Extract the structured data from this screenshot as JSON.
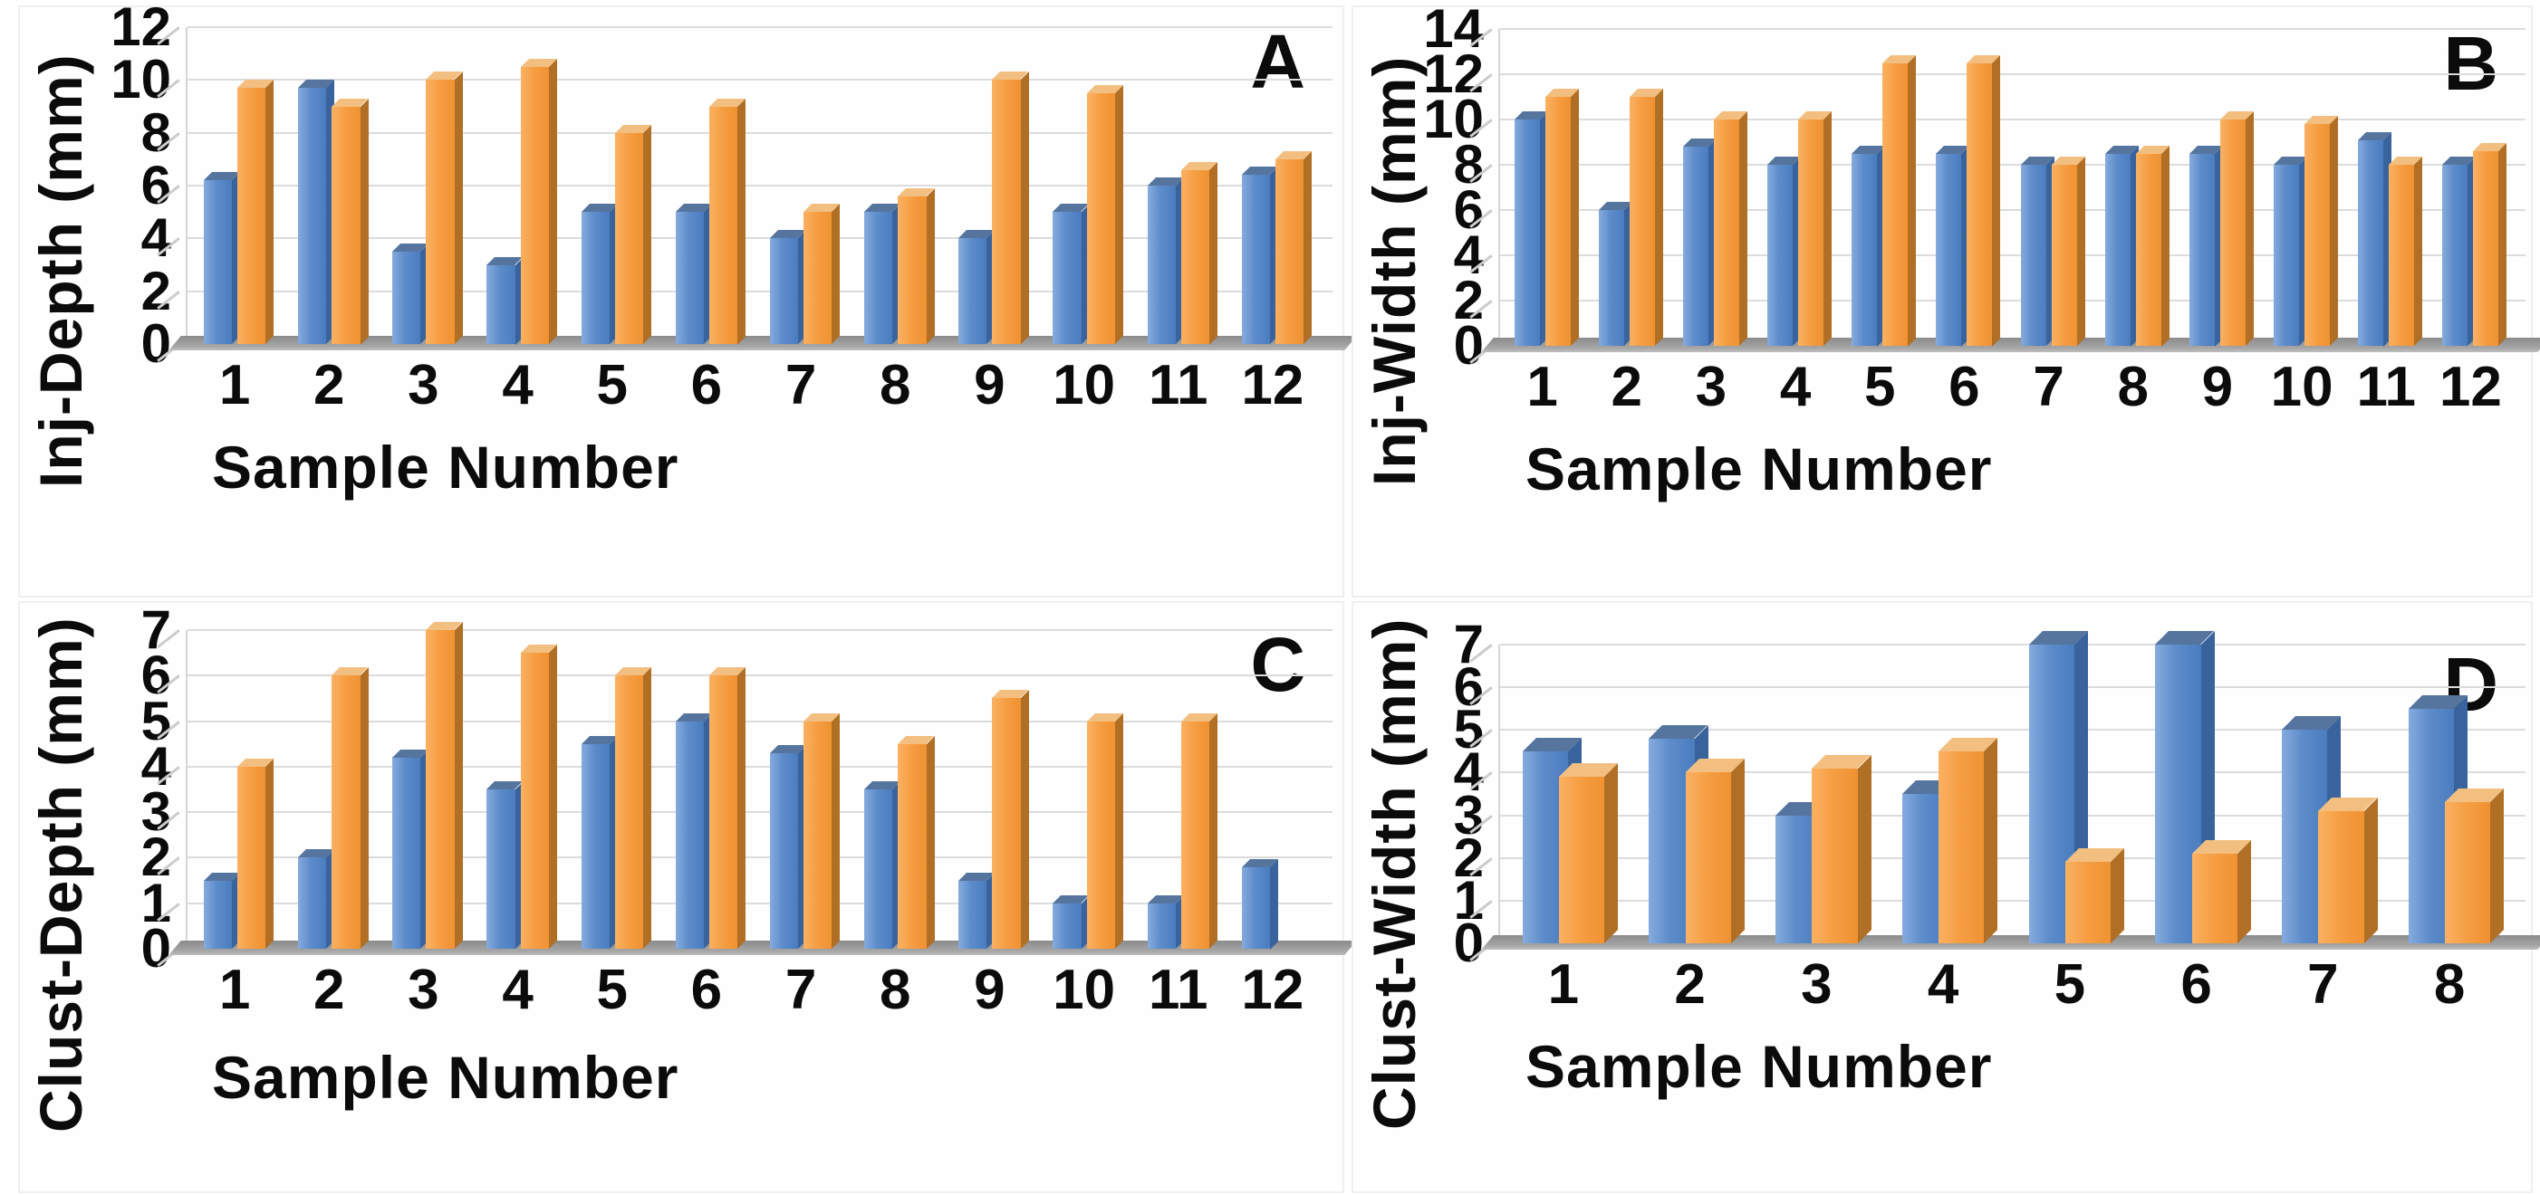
{
  "figure": {
    "background": "#ffffff",
    "legend": "none",
    "series_palette": {
      "blue": "#4C7EC0",
      "orange": "#F09A3E"
    }
  },
  "chart_data": [
    {
      "id": "A",
      "panel_label": "A",
      "type": "bar",
      "ylabel": "Inj-Depth (mm)",
      "xlabel": "Sample Number",
      "categories": [
        "1",
        "2",
        "3",
        "4",
        "5",
        "6",
        "7",
        "8",
        "9",
        "10",
        "11",
        "12"
      ],
      "yticks": [
        0,
        2,
        4,
        6,
        8,
        10,
        12
      ],
      "ylim": [
        0,
        12
      ],
      "grid": true,
      "legend": "none",
      "series": [
        {
          "name": "blue",
          "color": "#4C7EC0",
          "values": [
            6.2,
            9.7,
            3.5,
            3.0,
            5.0,
            5.0,
            4.0,
            5.0,
            4.0,
            5.0,
            6.0,
            6.4
          ]
        },
        {
          "name": "orange",
          "color": "#F09A3E",
          "values": [
            9.7,
            9.0,
            10.0,
            10.5,
            8.0,
            9.0,
            5.0,
            5.6,
            10.0,
            9.5,
            6.6,
            7.0
          ]
        }
      ]
    },
    {
      "id": "B",
      "panel_label": "B",
      "type": "bar",
      "ylabel": "Inj-Width (mm)",
      "xlabel": "Sample Number",
      "categories": [
        "1",
        "2",
        "3",
        "4",
        "5",
        "6",
        "7",
        "8",
        "9",
        "10",
        "11",
        "12"
      ],
      "yticks": [
        0,
        2,
        4,
        6,
        8,
        10,
        12,
        14
      ],
      "ylim": [
        0,
        14
      ],
      "grid": true,
      "legend": "none",
      "series": [
        {
          "name": "blue",
          "color": "#4C7EC0",
          "values": [
            10.0,
            6.0,
            8.8,
            8.0,
            8.5,
            8.5,
            8.0,
            8.5,
            8.5,
            8.0,
            9.1,
            8.0
          ]
        },
        {
          "name": "orange",
          "color": "#F09A3E",
          "values": [
            11.0,
            11.0,
            10.0,
            10.0,
            12.5,
            12.5,
            8.0,
            8.5,
            10.0,
            9.8,
            8.0,
            8.6
          ]
        }
      ]
    },
    {
      "id": "C",
      "panel_label": "C",
      "type": "bar",
      "ylabel": "Clust-Depth (mm)",
      "xlabel": "Sample Number",
      "categories": [
        "1",
        "2",
        "3",
        "4",
        "5",
        "6",
        "7",
        "8",
        "9",
        "10",
        "11",
        "12"
      ],
      "yticks": [
        0,
        1,
        2,
        3,
        4,
        5,
        6,
        7
      ],
      "ylim": [
        0,
        7
      ],
      "grid": true,
      "legend": "none",
      "series": [
        {
          "name": "blue",
          "color": "#4C7EC0",
          "values": [
            1.5,
            2.0,
            4.2,
            3.5,
            4.5,
            5.0,
            4.3,
            3.5,
            1.5,
            1.0,
            1.0,
            1.8
          ]
        },
        {
          "name": "orange",
          "color": "#F09A3E",
          "values": [
            4.0,
            6.0,
            7.0,
            6.5,
            6.0,
            6.0,
            5.0,
            4.5,
            5.5,
            5.0,
            5.0,
            null
          ]
        }
      ]
    },
    {
      "id": "D",
      "panel_label": "D",
      "type": "bar",
      "ylabel": "Clust-Width (mm)",
      "xlabel": "Sample Number",
      "categories": [
        "1",
        "2",
        "3",
        "4",
        "5",
        "6",
        "7",
        "8"
      ],
      "yticks": [
        0,
        1,
        2,
        3,
        4,
        5,
        6,
        7
      ],
      "ylim": [
        0,
        7
      ],
      "grid": true,
      "legend": "none",
      "series": [
        {
          "name": "blue",
          "color": "#4C7EC0",
          "values": [
            4.5,
            4.8,
            3.0,
            3.5,
            7.0,
            7.0,
            5.0,
            5.5
          ]
        },
        {
          "name": "orange",
          "color": "#F09A3E",
          "values": [
            3.9,
            4.0,
            4.1,
            4.5,
            1.9,
            2.1,
            3.1,
            3.3
          ]
        }
      ]
    }
  ]
}
